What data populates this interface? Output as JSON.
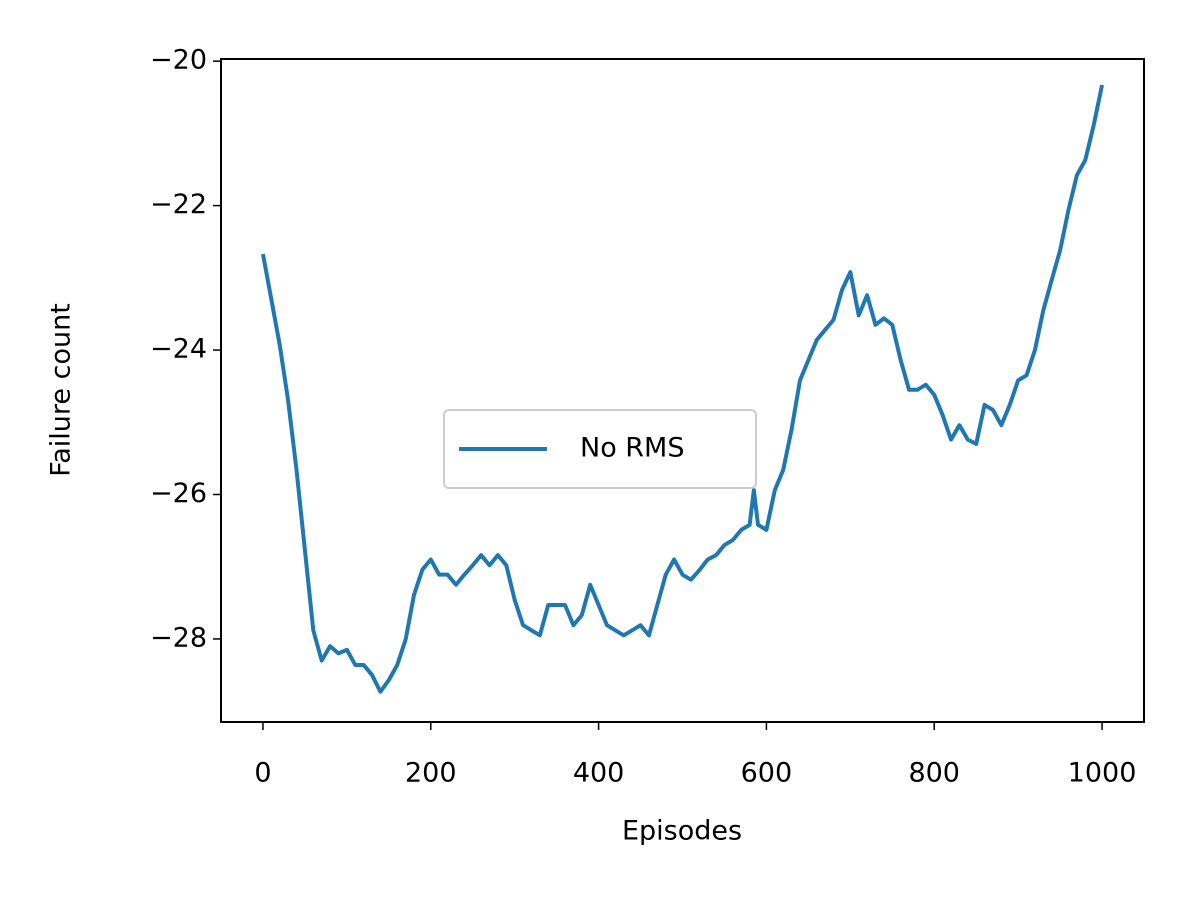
{
  "chart_data": {
    "type": "line",
    "xlabel": "Episodes",
    "ylabel": "Failure count",
    "x": [
      0,
      10,
      20,
      30,
      40,
      50,
      60,
      70,
      80,
      90,
      100,
      110,
      120,
      130,
      140,
      150,
      160,
      170,
      180,
      190,
      200,
      210,
      220,
      230,
      240,
      250,
      260,
      270,
      280,
      290,
      300,
      310,
      320,
      330,
      340,
      350,
      360,
      370,
      380,
      390,
      400,
      410,
      420,
      430,
      440,
      450,
      460,
      470,
      480,
      490,
      500,
      510,
      520,
      530,
      540,
      550,
      560,
      570,
      580,
      585,
      590,
      600,
      610,
      620,
      630,
      640,
      650,
      660,
      670,
      680,
      690,
      700,
      710,
      720,
      730,
      740,
      750,
      760,
      770,
      780,
      790,
      800,
      810,
      820,
      830,
      840,
      850,
      860,
      870,
      880,
      890,
      900,
      910,
      920,
      930,
      940,
      950,
      960,
      970,
      980,
      990,
      1000
    ],
    "series": [
      {
        "name": "No RMS",
        "color": "#1f77b4",
        "values": [
          -22.67,
          -23.3,
          -23.93,
          -24.7,
          -25.66,
          -26.77,
          -27.88,
          -28.3,
          -28.1,
          -28.2,
          -28.15,
          -28.36,
          -28.36,
          -28.5,
          -28.73,
          -28.57,
          -28.36,
          -28.01,
          -27.39,
          -27.04,
          -26.9,
          -27.11,
          -27.11,
          -27.25,
          -27.11,
          -26.98,
          -26.84,
          -26.98,
          -26.84,
          -26.98,
          -27.46,
          -27.81,
          -27.88,
          -27.95,
          -27.53,
          -27.53,
          -27.53,
          -27.81,
          -27.67,
          -27.25,
          -27.53,
          -27.81,
          -27.88,
          -27.95,
          -27.88,
          -27.81,
          -27.95,
          -27.53,
          -27.11,
          -26.9,
          -27.11,
          -27.18,
          -27.05,
          -26.9,
          -26.84,
          -26.7,
          -26.63,
          -26.49,
          -26.42,
          -25.94,
          -26.42,
          -26.49,
          -25.94,
          -25.66,
          -25.1,
          -24.42,
          -24.14,
          -23.86,
          -23.72,
          -23.58,
          -23.17,
          -22.92,
          -23.52,
          -23.24,
          -23.65,
          -23.56,
          -23.65,
          -24.14,
          -24.55,
          -24.55,
          -24.48,
          -24.62,
          -24.9,
          -25.24,
          -25.04,
          -25.24,
          -25.3,
          -24.76,
          -24.83,
          -25.04,
          -24.76,
          -24.42,
          -24.35,
          -24.0,
          -23.45,
          -23.03,
          -22.62,
          -22.06,
          -21.58,
          -21.37,
          -20.89,
          -20.33
        ]
      }
    ],
    "xlim": [
      -50,
      1050
    ],
    "xticks": [
      0,
      200,
      400,
      600,
      800,
      1000
    ],
    "ylim": [
      -29.15,
      -19.97
    ],
    "yticks": [
      {
        "value": -28,
        "label": "−28"
      },
      {
        "value": -26,
        "label": "−26"
      },
      {
        "value": -24,
        "label": "−24"
      },
      {
        "value": -22,
        "label": "−22"
      },
      {
        "value": -20,
        "label": "−20"
      }
    ],
    "legend": "center"
  }
}
